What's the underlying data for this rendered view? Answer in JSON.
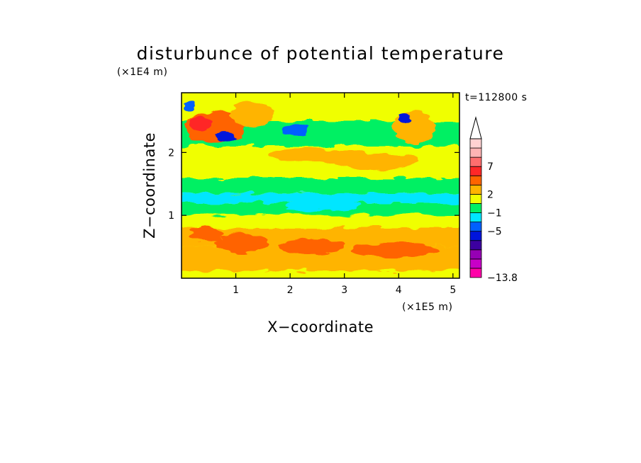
{
  "chart_data": {
    "type": "heatmap",
    "title": "disturbunce of potential temperature",
    "xlabel": "X−coordinate",
    "ylabel": "Z−coordinate",
    "x_unit_label": "(×1E5 m)",
    "y_unit_label": "(×1E4 m)",
    "time_label": "t=112800 s",
    "xlim": [
      0,
      5.12
    ],
    "ylim": [
      0,
      2.95
    ],
    "x_ticks": [
      {
        "value": 1,
        "label": "1"
      },
      {
        "value": 2,
        "label": "2"
      },
      {
        "value": 3,
        "label": "3"
      },
      {
        "value": 4,
        "label": "4"
      },
      {
        "value": 5,
        "label": "5"
      }
    ],
    "y_ticks": [
      {
        "value": 1,
        "label": "1"
      },
      {
        "value": 2,
        "label": "2"
      }
    ],
    "colorbar": {
      "extend": "max",
      "colors": [
        "#ff00a8",
        "#c800c8",
        "#9600b4",
        "#3c00a0",
        "#0014dc",
        "#0060ff",
        "#00e6ff",
        "#00f064",
        "#f0ff00",
        "#ffb400",
        "#ff6400",
        "#ff2828",
        "#ff6e6e",
        "#ffb4b4",
        "#ffd2d2"
      ],
      "labels": [
        {
          "value": 7,
          "label": "7"
        },
        {
          "value": 2,
          "label": "2"
        },
        {
          "value": -1,
          "label": "−1"
        },
        {
          "value": -5,
          "label": "−5"
        },
        {
          "value": -13.8,
          "label": "−13.8"
        }
      ]
    },
    "field": {
      "background_level": 1,
      "bands": [
        {
          "z": [
            0.0,
            0.12
          ],
          "level": 1
        },
        {
          "z": [
            0.12,
            0.5
          ],
          "level": 2
        },
        {
          "z": [
            0.5,
            0.8
          ],
          "level": 2
        },
        {
          "z": [
            0.8,
            1.0
          ],
          "level": 1
        },
        {
          "z": [
            1.0,
            1.2
          ],
          "level": 0
        },
        {
          "z": [
            1.2,
            1.35
          ],
          "level": -1
        },
        {
          "z": [
            1.35,
            1.6
          ],
          "level": 0
        },
        {
          "z": [
            1.6,
            2.1
          ],
          "level": 1
        },
        {
          "z": [
            2.1,
            2.5
          ],
          "level": 0
        },
        {
          "z": [
            2.5,
            2.95
          ],
          "level": 1
        }
      ],
      "blobs": [
        {
          "x": 0.6,
          "z": 2.4,
          "rx": 0.55,
          "rz": 0.25,
          "level": 3
        },
        {
          "x": 0.35,
          "z": 2.45,
          "rx": 0.2,
          "rz": 0.12,
          "level": 4
        },
        {
          "x": 0.8,
          "z": 2.25,
          "rx": 0.18,
          "rz": 0.08,
          "level": -3
        },
        {
          "x": 0.15,
          "z": 2.75,
          "rx": 0.1,
          "rz": 0.1,
          "level": -2
        },
        {
          "x": 1.3,
          "z": 2.6,
          "rx": 0.4,
          "rz": 0.2,
          "level": 2
        },
        {
          "x": 2.1,
          "z": 2.35,
          "rx": 0.25,
          "rz": 0.1,
          "level": -2
        },
        {
          "x": 2.5,
          "z": 1.95,
          "rx": 0.9,
          "rz": 0.12,
          "level": 2
        },
        {
          "x": 3.6,
          "z": 1.85,
          "rx": 0.8,
          "rz": 0.12,
          "level": 2
        },
        {
          "x": 4.3,
          "z": 2.4,
          "rx": 0.4,
          "rz": 0.25,
          "level": 2
        },
        {
          "x": 4.1,
          "z": 2.55,
          "rx": 0.1,
          "rz": 0.08,
          "level": -3
        },
        {
          "x": 1.1,
          "z": 0.55,
          "rx": 0.5,
          "rz": 0.15,
          "level": 3
        },
        {
          "x": 2.4,
          "z": 0.5,
          "rx": 0.6,
          "rz": 0.12,
          "level": 3
        },
        {
          "x": 3.9,
          "z": 0.45,
          "rx": 0.8,
          "rz": 0.12,
          "level": 3
        },
        {
          "x": 0.45,
          "z": 0.7,
          "rx": 0.3,
          "rz": 0.12,
          "level": 3
        },
        {
          "x": 3.0,
          "z": 2.7,
          "rx": 0.3,
          "rz": 0.15,
          "level": 1
        },
        {
          "x": 2.6,
          "z": 1.15,
          "rx": 0.7,
          "rz": 0.08,
          "level": -1
        }
      ]
    },
    "grid": false,
    "legend": "colorbar-right"
  }
}
